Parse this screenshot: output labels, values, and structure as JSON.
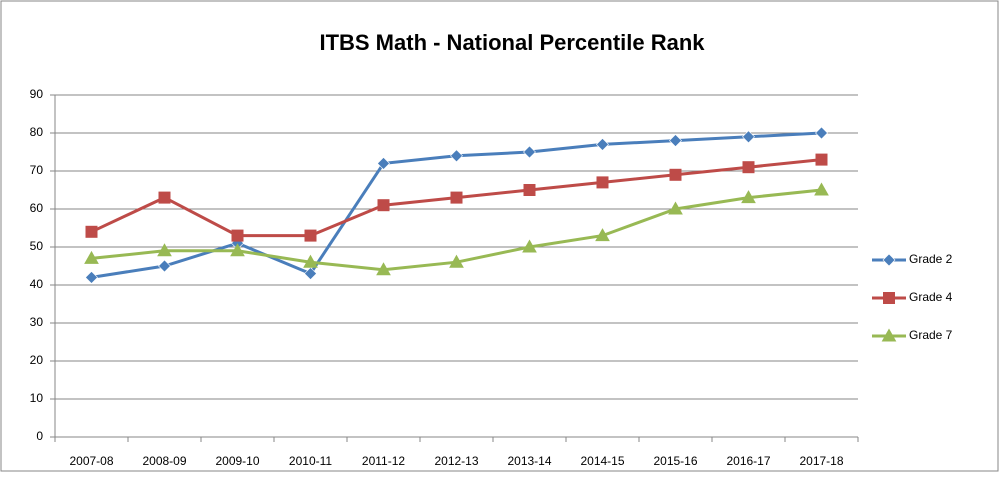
{
  "chart_data": {
    "type": "line",
    "title": "ITBS Math - National Percentile Rank",
    "categories": [
      "2007-08",
      "2008-09",
      "2009-10",
      "2010-11",
      "2011-12",
      "2012-13",
      "2013-14",
      "2014-15",
      "2015-16",
      "2016-17",
      "2017-18"
    ],
    "series": [
      {
        "name": "Grade 2",
        "color": "#4a7ebb",
        "marker": "diamond",
        "values": [
          42,
          45,
          51,
          43,
          72,
          74,
          75,
          77,
          78,
          79,
          80
        ]
      },
      {
        "name": "Grade 4",
        "color": "#be4b48",
        "marker": "square",
        "values": [
          54,
          63,
          53,
          53,
          61,
          63,
          65,
          67,
          69,
          71,
          73
        ]
      },
      {
        "name": "Grade 7",
        "color": "#98b954",
        "marker": "triangle",
        "values": [
          47,
          49,
          49,
          46,
          44,
          46,
          50,
          53,
          60,
          63,
          65
        ]
      }
    ],
    "ylim": [
      0,
      90
    ],
    "yticks": [
      0,
      10,
      20,
      30,
      40,
      50,
      60,
      70,
      80,
      90
    ],
    "grid": true,
    "legend": "right"
  }
}
